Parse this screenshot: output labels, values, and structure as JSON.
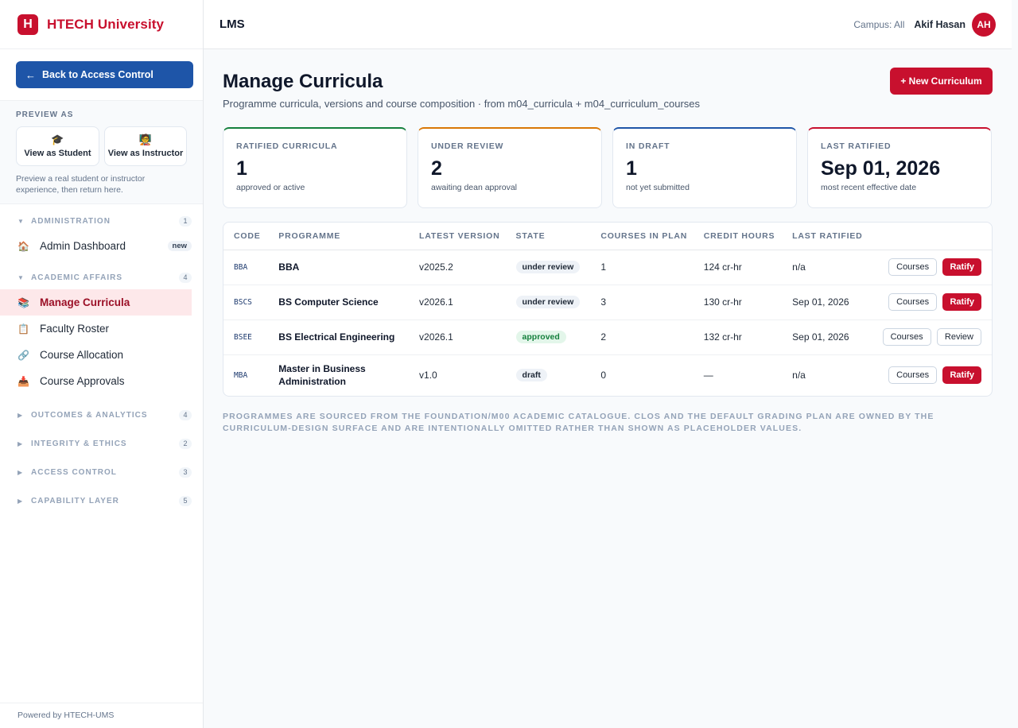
{
  "brand": {
    "logo_letter": "H",
    "name": "HTECH University"
  },
  "sidebar": {
    "back_label": "Back to Access Control",
    "back_arrow": "←",
    "preview": {
      "title": "PREVIEW AS",
      "student_label": "View as Student",
      "student_icon": "🎓",
      "instructor_label": "View as Instructor",
      "instructor_icon": "🧑‍🏫",
      "note": "Preview a real student or instructor experience, then return here."
    },
    "groups": [
      {
        "name": "ADMINISTRATION",
        "count": "1"
      },
      {
        "name": "ACADEMIC AFFAIRS",
        "count": "4"
      },
      {
        "name": "OUTCOMES & ANALYTICS",
        "count": "4"
      },
      {
        "name": "INTEGRITY & ETHICS",
        "count": "2"
      },
      {
        "name": "ACCESS CONTROL",
        "count": "3"
      },
      {
        "name": "CAPABILITY LAYER",
        "count": "5"
      }
    ],
    "items": {
      "admin_dashboard": {
        "label": "Admin Dashboard",
        "badge": "new",
        "icon": "🏠"
      },
      "manage_curricula": {
        "label": "Manage Curricula",
        "icon": "📚"
      },
      "faculty_roster": {
        "label": "Faculty Roster",
        "icon": "📋"
      },
      "course_allocation": {
        "label": "Course Allocation",
        "icon": "🔗"
      },
      "course_approvals": {
        "label": "Course Approvals",
        "icon": "📥"
      }
    },
    "footer": "Powered by HTECH-UMS"
  },
  "topbar": {
    "title": "LMS",
    "campus": "Campus: All",
    "user": "Akif Hasan",
    "avatar": "AH"
  },
  "page": {
    "title": "Manage Curricula",
    "subtitle": "Programme curricula, versions and course composition · from m04_curricula + m04_curriculum_courses",
    "new_button": "+ New Curriculum"
  },
  "stats": [
    {
      "label": "RATIFIED CURRICULA",
      "value": "1",
      "sub": "approved or active"
    },
    {
      "label": "UNDER REVIEW",
      "value": "2",
      "sub": "awaiting dean approval"
    },
    {
      "label": "IN DRAFT",
      "value": "1",
      "sub": "not yet submitted"
    },
    {
      "label": "LAST RATIFIED",
      "value": "Sep 01, 2026",
      "sub": "most recent effective date"
    }
  ],
  "table": {
    "headers": [
      "CODE",
      "PROGRAMME",
      "LATEST VERSION",
      "STATE",
      "COURSES IN PLAN",
      "CREDIT HOURS",
      "LAST RATIFIED"
    ],
    "rows": [
      {
        "code": "BBA",
        "programme": "BBA",
        "version": "v2025.2",
        "state": "under review",
        "courses": "1",
        "credit": "124 cr-hr",
        "ratified": "n/a",
        "btn1": "Courses",
        "btn2": "Ratify"
      },
      {
        "code": "BSCS",
        "programme": "BS Computer Science",
        "version": "v2026.1",
        "state": "under review",
        "courses": "3",
        "credit": "130 cr-hr",
        "ratified": "Sep 01, 2026",
        "btn1": "Courses",
        "btn2": "Ratify"
      },
      {
        "code": "BSEE",
        "programme": "BS Electrical Engineering",
        "version": "v2026.1",
        "state": "approved",
        "courses": "2",
        "credit": "132 cr-hr",
        "ratified": "Sep 01, 2026",
        "btn1": "Courses",
        "btn2": "Review"
      },
      {
        "code": "MBA",
        "programme": "Master in Business Administration",
        "version": "v1.0",
        "state": "draft",
        "courses": "0",
        "credit": "—",
        "ratified": "n/a",
        "btn1": "Courses",
        "btn2": "Ratify"
      }
    ]
  },
  "footnote": "Programmes are sourced from the foundation/m00 academic catalogue. CLOs and the default grading plan are owned by the curriculum-design surface and are intentionally omitted rather than shown as placeholder values."
}
